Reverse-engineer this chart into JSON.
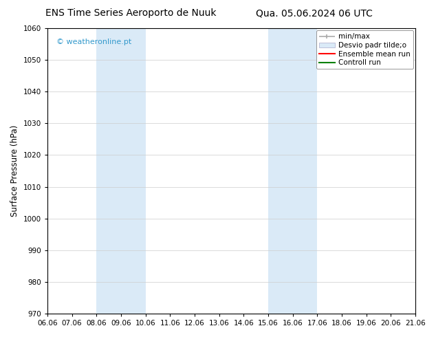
{
  "title_left": "ENS Time Series Aeroporto de Nuuk",
  "title_right": "Qua. 05.06.2024 06 UTC",
  "ylabel": "Surface Pressure (hPa)",
  "ylim": [
    970,
    1060
  ],
  "yticks": [
    970,
    980,
    990,
    1000,
    1010,
    1020,
    1030,
    1040,
    1050,
    1060
  ],
  "xtick_positions": [
    6,
    7,
    8,
    9,
    10,
    11,
    12,
    13,
    14,
    15,
    16,
    17,
    18,
    19,
    20,
    21
  ],
  "xtick_labels": [
    "06.06",
    "07.06",
    "08.06",
    "09.06",
    "10.06",
    "11.06",
    "12.06",
    "13.06",
    "14.06",
    "15.06",
    "16.06",
    "17.06",
    "18.06",
    "19.06",
    "20.06",
    "21.06"
  ],
  "xlim": [
    6,
    21
  ],
  "shaded_regions": [
    {
      "x_start": 8.0,
      "x_end": 10.0,
      "color": "#daeaf7"
    },
    {
      "x_start": 15.0,
      "x_end": 17.0,
      "color": "#daeaf7"
    }
  ],
  "watermark": "© weatheronline.pt",
  "watermark_color": "#3399cc",
  "bg_color": "#ffffff",
  "plot_bg_color": "#ffffff",
  "title_fontsize": 10,
  "tick_fontsize": 7.5,
  "ylabel_fontsize": 8.5,
  "legend_fontsize": 7.5,
  "watermark_fontsize": 8,
  "grid_color": "#cccccc",
  "grid_lw": 0.5,
  "minmax_color": "#aaaaaa",
  "desvio_facecolor": "#daeaf7",
  "desvio_edgecolor": "#aaaacc",
  "ensemble_color": "red",
  "control_color": "green"
}
